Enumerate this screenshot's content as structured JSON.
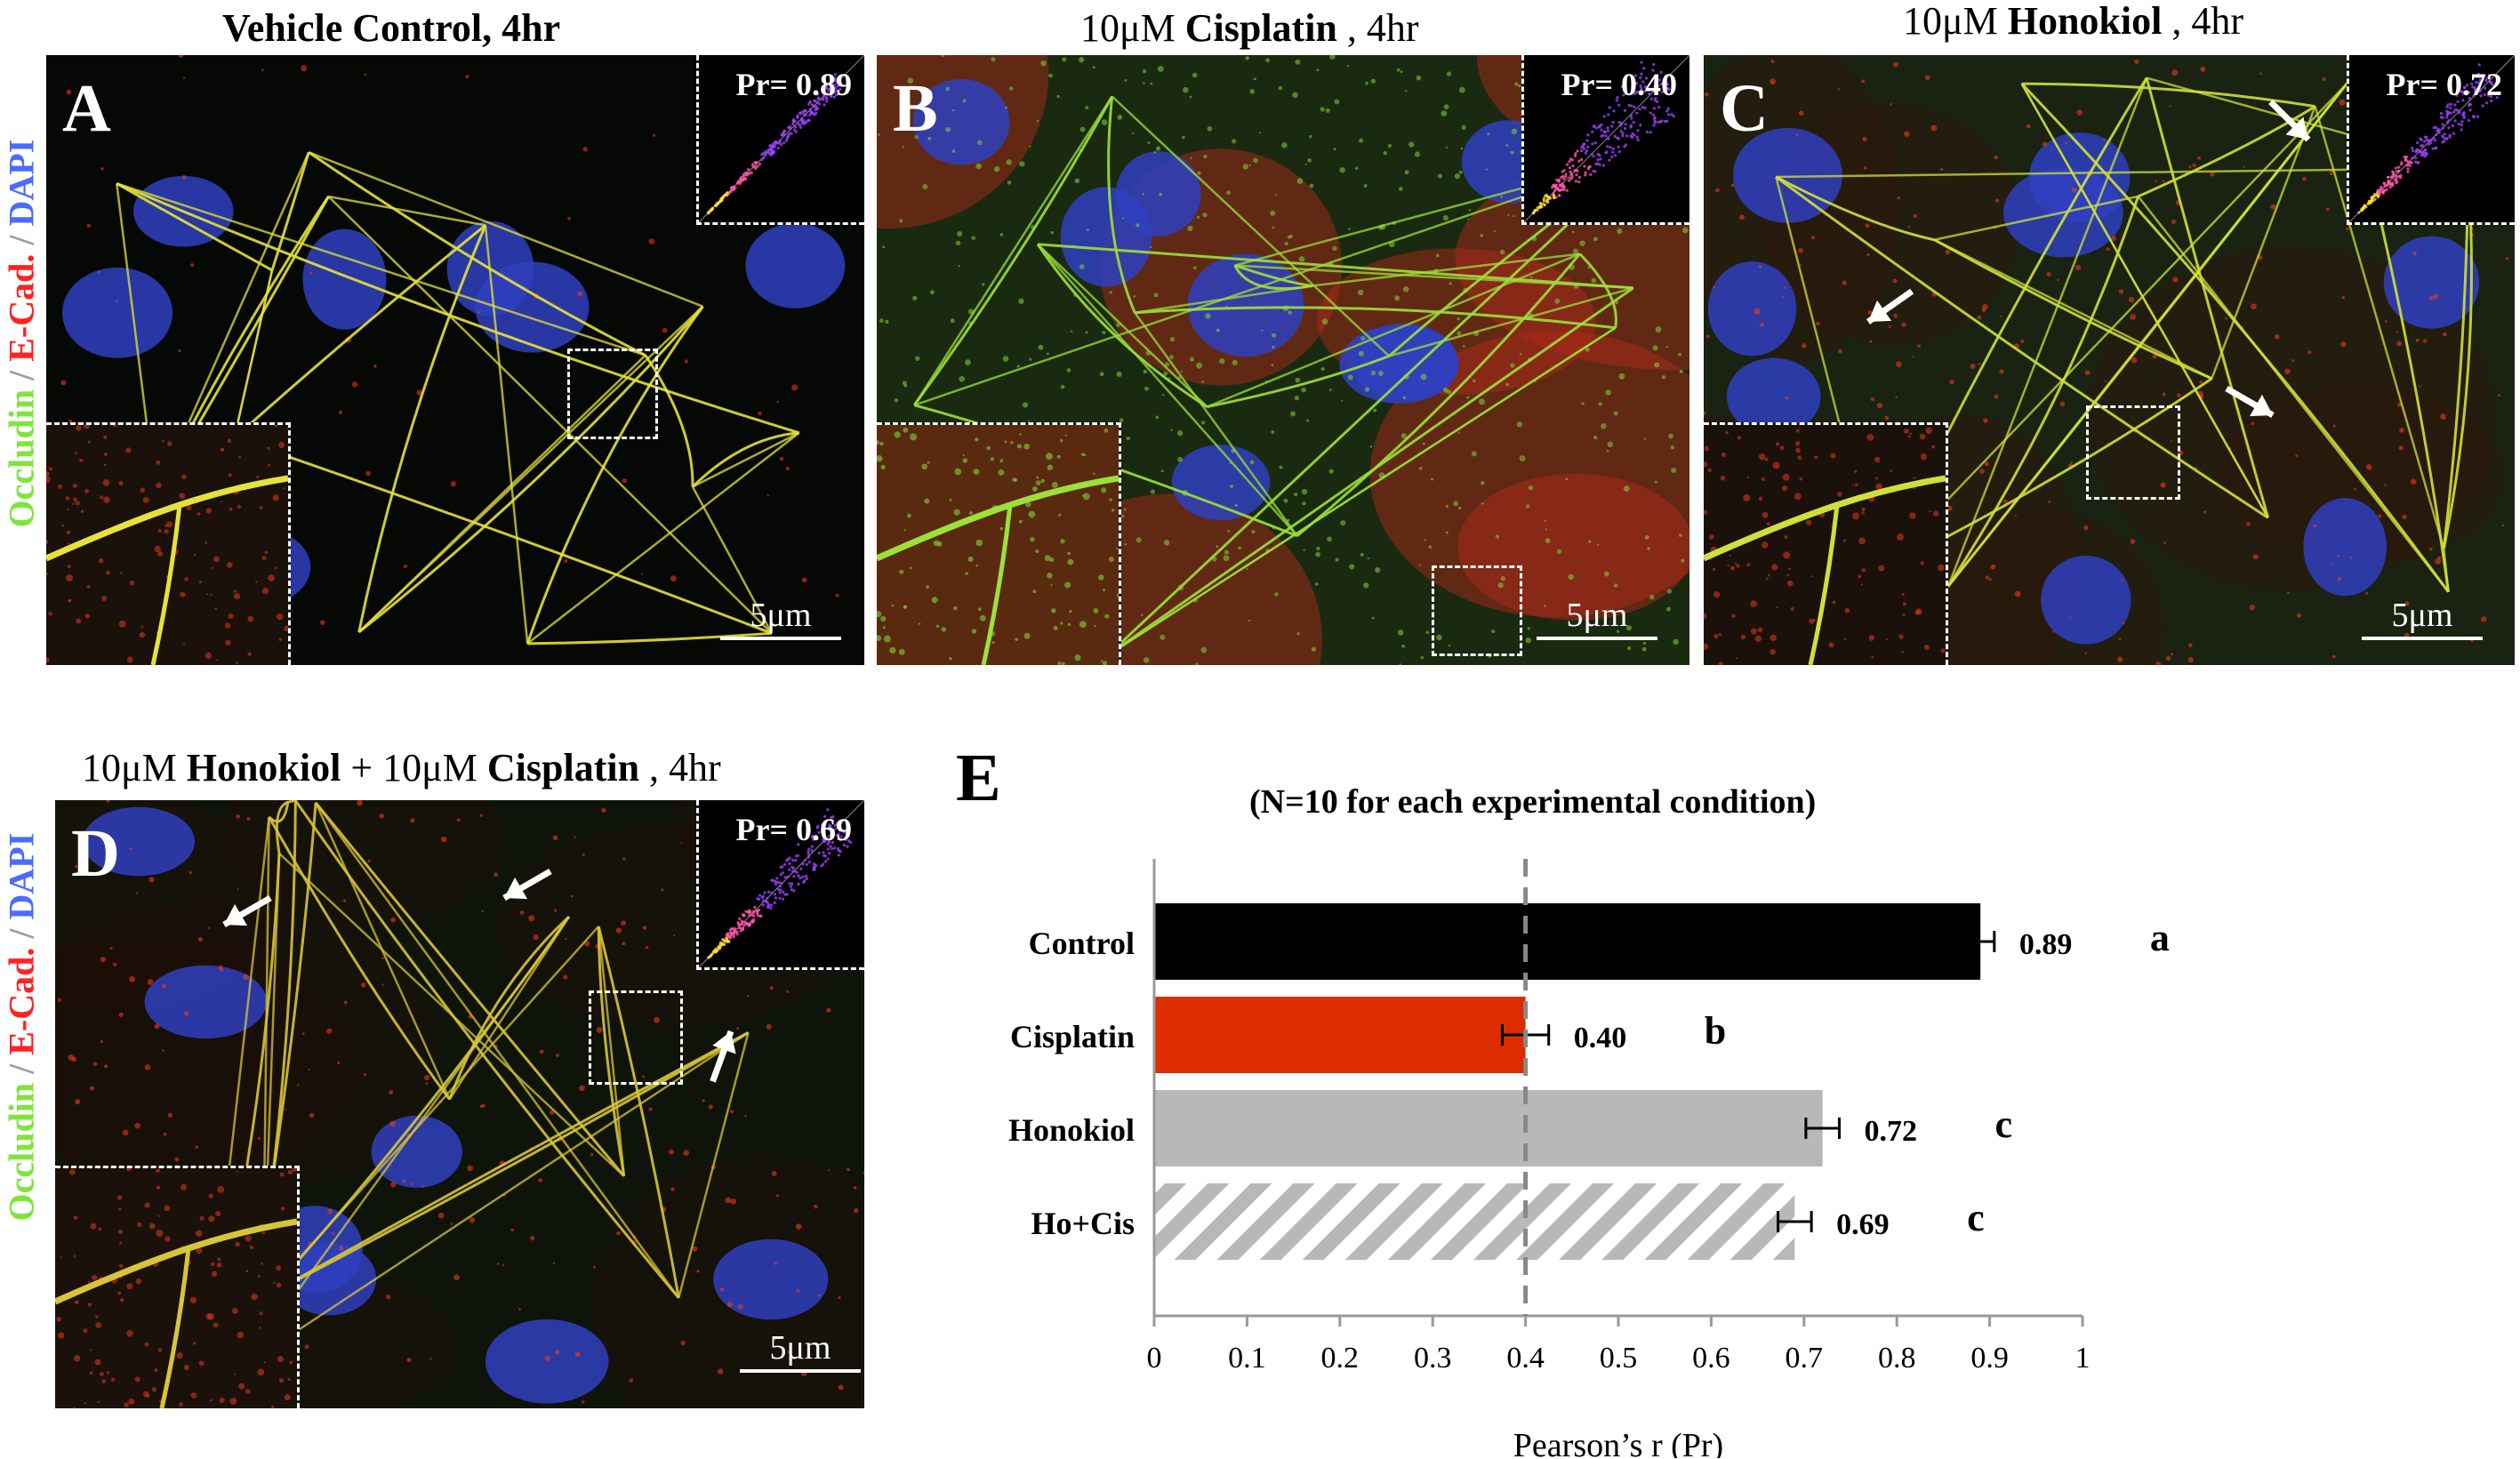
{
  "panels": {
    "A": {
      "letter": "A",
      "title_parts": [
        {
          "t": "Vehicle Control, 4hr",
          "b": true
        }
      ],
      "pr": "Pr= 0.89",
      "scale": "5μm"
    },
    "B": {
      "letter": "B",
      "title_parts": [
        {
          "t": "10μM ",
          "b": false
        },
        {
          "t": "Cisplatin",
          "b": true
        },
        {
          "t": " , 4hr",
          "b": false
        }
      ],
      "pr": "Pr= 0.40",
      "scale": "5μm"
    },
    "C": {
      "letter": "C",
      "title_parts": [
        {
          "t": "10μM ",
          "b": false
        },
        {
          "t": "Honokiol",
          "b": true
        },
        {
          "t": " , 4hr",
          "b": false
        }
      ],
      "pr": "Pr= 0.72",
      "scale": "5μm"
    },
    "D": {
      "letter": "D",
      "title_parts": [
        {
          "t": "10μM ",
          "b": false
        },
        {
          "t": "Honokiol",
          "b": true
        },
        {
          "t": " + 10μM ",
          "b": false
        },
        {
          "t": "Cisplatin",
          "b": true
        },
        {
          "t": " , 4hr",
          "b": false
        }
      ],
      "pr": "Pr= 0.69",
      "scale": "5μm"
    }
  },
  "stain_label": {
    "occludin": "Occludin",
    "sep": " / ",
    "ecad": "E-Cad.",
    "dapi": "DAPI"
  },
  "colors": {
    "occludin": "#7fe43c",
    "ecad": "#ff2222",
    "dapi": "#4a6cff",
    "control_bar": "#000000",
    "cisplatin_bar": "#dd2c00",
    "honokiol_bar": "#b8b8b8",
    "hocis_hatch": "#b8b8b8"
  },
  "chart_data": {
    "type": "bar",
    "orientation": "horizontal",
    "panel_letter": "E",
    "subtitle": "(N=10 for each experimental condition)",
    "categories": [
      "Control",
      "Cisplatin",
      "Honokiol",
      "Ho+Cis"
    ],
    "values": [
      0.89,
      0.4,
      0.72,
      0.69
    ],
    "value_labels": [
      "0.89",
      "0.40",
      "0.72",
      "0.69"
    ],
    "errors": [
      0.015,
      0.025,
      0.018,
      0.018
    ],
    "significance": [
      "a",
      "b",
      "c",
      "c"
    ],
    "fills": [
      "solid-black",
      "solid-red",
      "solid-gray",
      "hatched-gray"
    ],
    "xlabel": "Pearson’s r (Pr)",
    "xlim": [
      0,
      1
    ],
    "xticks": [
      "0",
      "0.1",
      "0.2",
      "0.3",
      "0.4",
      "0.5",
      "0.6",
      "0.7",
      "0.8",
      "0.9",
      "1"
    ],
    "reference_line": 0.4,
    "reference_style": "dashed",
    "grid": false
  }
}
